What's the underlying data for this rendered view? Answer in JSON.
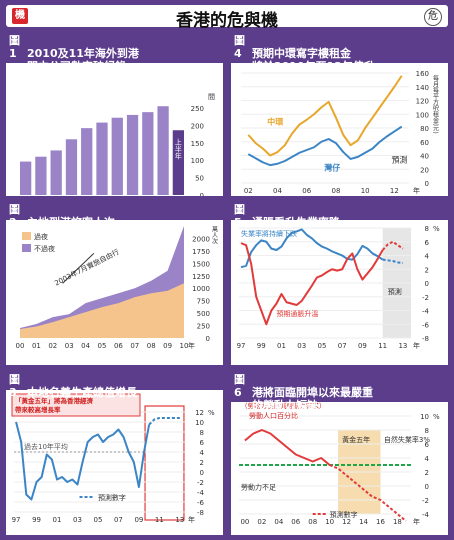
{
  "page": {
    "title": "香港的危與機",
    "badge_left": "機",
    "badge_right": "危"
  },
  "chart_data": [
    {
      "id": "p1",
      "type": "bar",
      "title": "2010及11年海外到港開立公司數字破紀錄",
      "categories": [
        "01",
        "02",
        "03",
        "04",
        "05",
        "06",
        "07",
        "08",
        "09",
        "10",
        "11"
      ],
      "xlabel": "年",
      "values": [
        96,
        110,
        128,
        160,
        192,
        208,
        222,
        230,
        238,
        255,
        186
      ],
      "highlight_label": "上半年",
      "yticks": [
        0,
        50,
        100,
        150,
        200,
        250
      ],
      "ylabel": "間",
      "ylim": [
        0,
        270
      ]
    },
    {
      "id": "p2",
      "type": "line",
      "title": "預期中環寫字樓租金將於2010年至12年倍升",
      "xlabels": [
        "02",
        "04",
        "06",
        "08",
        "10",
        "12"
      ],
      "xlabel": "年",
      "ylim": [
        0,
        160
      ],
      "yticks": [
        0,
        20,
        40,
        60,
        80,
        100,
        120,
        140,
        160
      ],
      "ylabel": "每月每平方呎租金(元)",
      "series": [
        {
          "name": "中環",
          "color": "#e8a62a",
          "x": [
            2002,
            2002.5,
            2003,
            2003.5,
            2004,
            2004.5,
            2005,
            2005.5,
            2006,
            2006.5,
            2007,
            2007.5,
            2008,
            2008.5,
            2009,
            2009.5,
            2010,
            2010.5,
            2011,
            2011.5,
            2012,
            2012.5
          ],
          "values": [
            70,
            58,
            50,
            40,
            45,
            55,
            72,
            85,
            92,
            100,
            110,
            118,
            95,
            70,
            55,
            62,
            80,
            95,
            110,
            125,
            140,
            156
          ]
        },
        {
          "name": "灣仔",
          "color": "#3b85c6",
          "x": [
            2002,
            2002.5,
            2003,
            2003.5,
            2004,
            2004.5,
            2005,
            2005.5,
            2006,
            2006.5,
            2007,
            2007.5,
            2008,
            2008.5,
            2009,
            2009.5,
            2010,
            2010.5,
            2011,
            2011.5,
            2012,
            2012.5
          ],
          "values": [
            42,
            36,
            30,
            26,
            28,
            32,
            38,
            44,
            48,
            52,
            60,
            64,
            58,
            45,
            35,
            38,
            44,
            50,
            60,
            68,
            75,
            82
          ]
        }
      ],
      "forecast_label": "預測"
    },
    {
      "id": "p3",
      "type": "area",
      "title": "內地到港旅客人次",
      "xlabels": [
        "00",
        "01",
        "02",
        "03",
        "04",
        "05",
        "06",
        "07",
        "08",
        "09",
        "10"
      ],
      "xlabel": "年",
      "ylim": [
        0,
        2250
      ],
      "yticks": [
        0,
        250,
        500,
        750,
        1000,
        1250,
        1500,
        1750,
        2000
      ],
      "ylabel": "萬人次",
      "annotation": "2003年7月實施自由行",
      "legend": [
        {
          "name": "過夜",
          "color": "#f5c48c"
        },
        {
          "name": "不過夜",
          "color": "#9a83c7"
        }
      ],
      "series": [
        {
          "name": "過夜",
          "values": [
            180,
            230,
            320,
            420,
            520,
            620,
            700,
            820,
            900,
            950,
            1100
          ]
        },
        {
          "name": "不過夜",
          "values": [
            200,
            280,
            420,
            480,
            700,
            800,
            900,
            1000,
            1150,
            1350,
            2250
          ]
        }
      ]
    },
    {
      "id": "p4",
      "type": "line",
      "title": "通脹看升失業率降",
      "xlabels": [
        "97",
        "99",
        "01",
        "03",
        "05",
        "07",
        "09",
        "11",
        "13"
      ],
      "xlabel": "年",
      "ylim": [
        -8,
        8
      ],
      "yticks": [
        -8,
        -6,
        -4,
        -2,
        0,
        2,
        4,
        6,
        8
      ],
      "yunit": "%",
      "series": [
        {
          "name": "失業率將持續下跌",
          "color": "#3b85c6",
          "x": [
            1997,
            1997.5,
            1998,
            1998.5,
            1999,
            1999.5,
            2000,
            2000.5,
            2001,
            2001.5,
            2002,
            2002.5,
            2003,
            2003.5,
            2004,
            2004.5,
            2005,
            2005.5,
            2006,
            2006.5,
            2007,
            2007.5,
            2008,
            2008.5,
            2009,
            2009.5,
            2010,
            2010.5,
            2011,
            2011.5,
            2012,
            2012.5,
            2013
          ],
          "values": [
            2.3,
            2.5,
            4.5,
            5.5,
            6.2,
            6.0,
            5.0,
            4.8,
            5.3,
            6.5,
            7.3,
            7.5,
            7.8,
            7.0,
            6.5,
            5.8,
            5.3,
            5.0,
            4.6,
            4.3,
            4.0,
            3.5,
            3.4,
            4.2,
            5.4,
            5.0,
            4.3,
            3.9,
            3.4,
            3.3,
            3.2,
            3.0,
            2.9
          ]
        },
        {
          "name": "預期通脹升溫",
          "color": "#e23a3a",
          "x": [
            1997,
            1997.5,
            1998,
            1998.5,
            1999,
            1999.5,
            2000,
            2000.5,
            2001,
            2001.5,
            2002,
            2002.5,
            2003,
            2003.5,
            2004,
            2004.5,
            2005,
            2005.5,
            2006,
            2006.5,
            2007,
            2007.5,
            2008,
            2008.5,
            2009,
            2009.5,
            2010,
            2010.5,
            2011,
            2011.5,
            2012,
            2012.5,
            2013
          ],
          "values": [
            5.8,
            5.5,
            2.8,
            -2,
            -4,
            -6,
            -4,
            -3,
            -1.6,
            -2.8,
            -3.0,
            -3.2,
            -2.6,
            -1.5,
            -0.4,
            0.8,
            1.1,
            1.6,
            2.0,
            1.8,
            2.0,
            3.5,
            4.3,
            2.0,
            0.5,
            1.4,
            2.3,
            3.5,
            4.8,
            5.6,
            6.0,
            5.5,
            5.0
          ]
        }
      ],
      "forecast_label": "預測"
    },
    {
      "id": "p5",
      "type": "line",
      "title": "本地名義生產總值增長",
      "xlabels": [
        "97",
        "99",
        "01",
        "03",
        "05",
        "07",
        "09",
        "11",
        "13"
      ],
      "xlabel": "年",
      "xlabel_extra": "11\"12\"",
      "ylim": [
        -8,
        12
      ],
      "yticks": [
        -8,
        -6,
        -4,
        -2,
        0,
        2,
        4,
        6,
        8,
        10,
        12
      ],
      "yunit": "%",
      "note": "「黃金五年」將為香港經濟帶來較高增長率",
      "avg_label": "過去10年平均",
      "avg_value": 4,
      "series": [
        {
          "name": "實際",
          "color": "#3b85c6",
          "x": [
            1997,
            1997.5,
            1998,
            1998.5,
            1999,
            1999.5,
            2000,
            2000.5,
            2001,
            2001.5,
            2002,
            2002.5,
            2003,
            2003.5,
            2004,
            2004.5,
            2005,
            2005.5,
            2006,
            2006.5,
            2007,
            2007.5,
            2008,
            2008.5,
            2009,
            2009.5,
            2010
          ],
          "values": [
            10,
            6,
            -4.5,
            -5.5,
            -2,
            -1,
            3.5,
            2.5,
            -1.5,
            -1,
            -2,
            -1.5,
            -2.5,
            2,
            6,
            7,
            7.5,
            6,
            7,
            7.5,
            8.5,
            7,
            4,
            2,
            -3,
            4,
            9.5
          ]
        },
        {
          "name": "預測數字",
          "color": "#3b85c6",
          "x": [
            2010,
            2010.5,
            2011,
            2011.5,
            2012,
            2013
          ],
          "values": [
            9.5,
            10.5,
            10.8,
            10.8,
            10.8,
            10.8
          ]
        }
      ]
    },
    {
      "id": "p6",
      "type": "line",
      "title": "港將面臨開埠以來最嚴重的勞動力短缺",
      "xlabels": [
        "00",
        "02",
        "04",
        "06",
        "08",
        "10",
        "12",
        "14",
        "16",
        "18"
      ],
      "xlabel": "年",
      "ylim": [
        -4,
        10
      ],
      "yticks": [
        -4,
        -2,
        0,
        2,
        4,
        6,
        8,
        10
      ],
      "yunit": "%",
      "note": "（勞動力供應減勞動力需求）",
      "labels": [
        "剩餘勞動力",
        "勞動力不足",
        "黃金五年",
        "自然失業率3%"
      ],
      "series": [
        {
          "name": "勞動人口百分比",
          "color": "#e23a3a",
          "x": [
            2000,
            2001,
            2002,
            2003,
            2004,
            2005,
            2006,
            2007,
            2008,
            2009,
            2010
          ],
          "values": [
            6.5,
            7.5,
            8,
            7.5,
            6.5,
            5.5,
            4.5,
            4,
            3.5,
            4,
            3
          ]
        },
        {
          "name": "預測數字",
          "color": "#e23a3a",
          "x": [
            2010,
            2011,
            2012,
            2013,
            2014,
            2015,
            2016,
            2017,
            2018,
            2019
          ],
          "values": [
            3,
            2.5,
            1.5,
            0.5,
            -0.5,
            -1.5,
            -2,
            -3,
            -4,
            -5
          ]
        }
      ],
      "natural_rate": 3,
      "highlight_years": [
        2011,
        2016
      ]
    }
  ],
  "headers": [
    {
      "n": "圖1",
      "t1": "2010及11年海外到港",
      "t2": "開立公司數字破紀錄"
    },
    {
      "n": "圖4",
      "t1": "預期中環寫字樓租金",
      "t2": "將於2010年至12年倍升"
    },
    {
      "n": "圖2",
      "t1": "內地到港旅客人次",
      "t2": ""
    },
    {
      "n": "圖5",
      "t1": "通脹看升失業率降",
      "t2": ""
    },
    {
      "n": "圖3",
      "t1": "本地名義生產總值增長",
      "t2": ""
    },
    {
      "n": "圖6",
      "t1": "港將面臨開埠以來最嚴重",
      "t2": "的勞動力短缺"
    }
  ],
  "colors": {
    "purple": "#5b3d8c",
    "bar": "#9a83c7",
    "bar_dark": "#5b3d8c",
    "orange": "#e8a62a",
    "blue": "#3b85c6",
    "red": "#e23a3a",
    "green": "#22a44a",
    "pink_box": "#fbe3e3"
  }
}
